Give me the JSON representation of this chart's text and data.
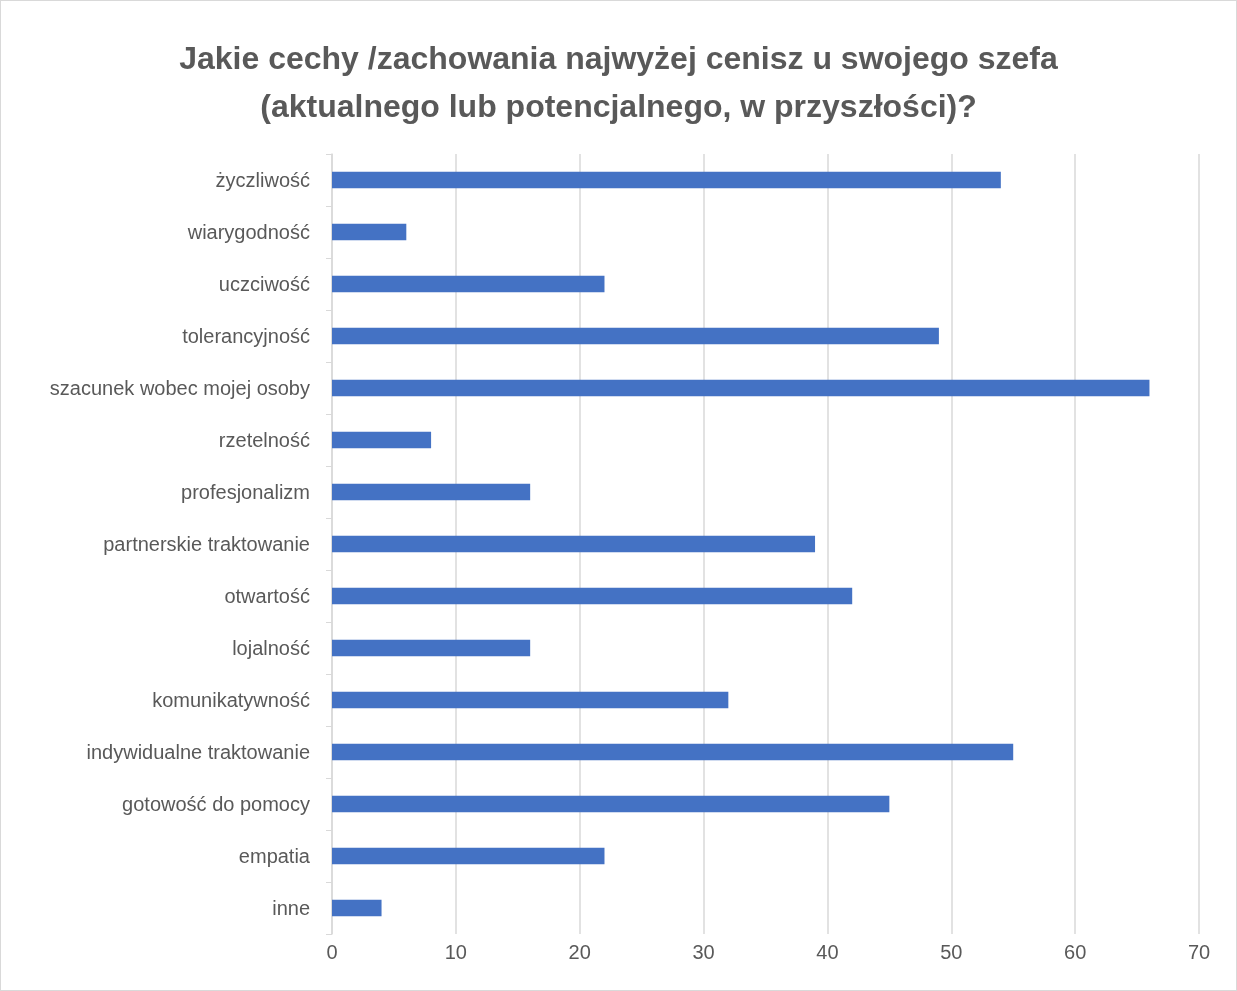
{
  "chart_data": {
    "type": "bar",
    "orientation": "horizontal",
    "title": "Jakie cechy /zachowania najwyżej cenisz u swojego szefa\n(aktualnego lub potencjalnego, w przyszłości)?",
    "categories": [
      "życzliwość",
      "wiarygodność",
      "uczciwość",
      "tolerancyjność",
      "szacunek wobec mojej osoby",
      "rzetelność",
      "profesjonalizm",
      "partnerskie traktowanie",
      "otwartość",
      "lojalność",
      "komunikatywność",
      "indywidualne traktowanie",
      "gotowość do pomocy",
      "empatia",
      "inne"
    ],
    "values": [
      54,
      6,
      22,
      49,
      66,
      8,
      16,
      39,
      42,
      16,
      32,
      55,
      45,
      22,
      4
    ],
    "color": "#4472c4",
    "xlim": [
      0,
      70
    ],
    "xticks": [
      0,
      10,
      20,
      30,
      40,
      50,
      60,
      70
    ],
    "grid": "x"
  }
}
